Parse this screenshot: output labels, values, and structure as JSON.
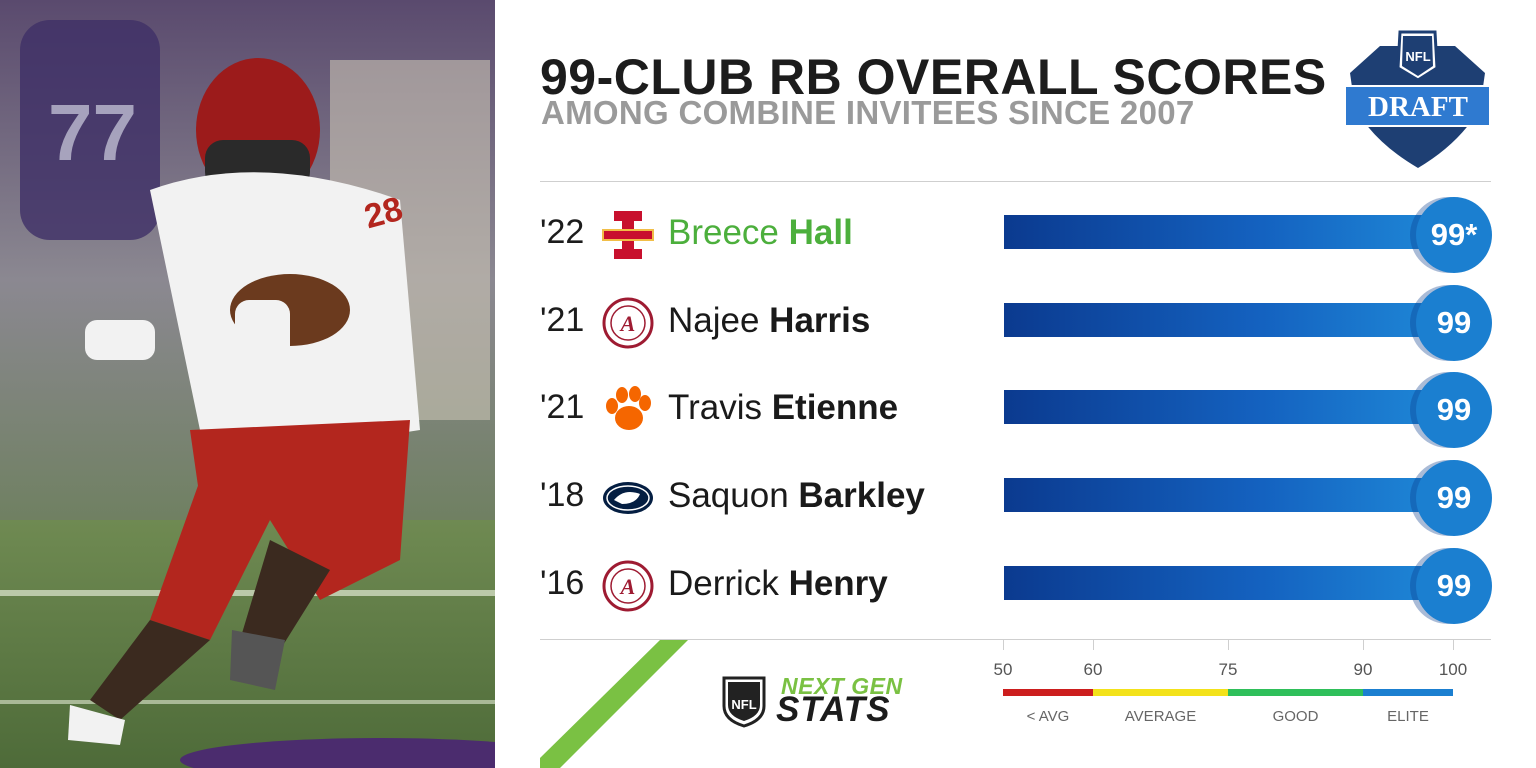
{
  "header": {
    "title": "99-CLUB RB OVERALL SCORES",
    "subtitle": "AMONG COMBINE INVITEES SINCE 2007",
    "draft_logo": {
      "top_text": "NFL",
      "main_text": "DRAFT"
    }
  },
  "photo": {
    "jersey_number": "28",
    "background_number": "77"
  },
  "colors": {
    "bar": "#1462c0",
    "badge": "#1b7fd0",
    "highlight_name": "#4caf3c",
    "scale_below_avg": "#cc1e1e",
    "scale_average": "#f3e21a",
    "scale_good": "#2fbf5a",
    "scale_elite": "#1b7fd0"
  },
  "chart_data": {
    "type": "bar",
    "orientation": "horizontal",
    "xlim": [
      50,
      100
    ],
    "categories": [
      "'22 Breece Hall",
      "'21 Najee Harris",
      "'21 Travis Etienne",
      "'18 Saquon Barkley",
      "'16 Derrick Henry"
    ],
    "values": [
      99,
      99,
      99,
      99,
      99
    ],
    "rows": [
      {
        "year": "'22",
        "first": "Breece",
        "last": "Hall",
        "school_icon": "iowa-state-logo-icon",
        "value": 99,
        "label": "99*",
        "highlight": true
      },
      {
        "year": "'21",
        "first": "Najee",
        "last": "Harris",
        "school_icon": "alabama-logo-icon",
        "value": 99,
        "label": "99",
        "highlight": false
      },
      {
        "year": "'21",
        "first": "Travis",
        "last": "Etienne",
        "school_icon": "clemson-paw-icon",
        "value": 99,
        "label": "99",
        "highlight": false
      },
      {
        "year": "'18",
        "first": "Saquon",
        "last": "Barkley",
        "school_icon": "penn-state-logo-icon",
        "value": 99,
        "label": "99",
        "highlight": false
      },
      {
        "year": "'16",
        "first": "Derrick",
        "last": "Henry",
        "school_icon": "alabama-logo-icon",
        "value": 99,
        "label": "99",
        "highlight": false
      }
    ],
    "scale": {
      "ticks": [
        50,
        60,
        75,
        90,
        100
      ],
      "tick_labels": [
        "50",
        "60",
        "75",
        "90",
        "100"
      ],
      "segments": [
        {
          "label": "< AVG",
          "from": 50,
          "to": 60,
          "color": "#cc1e1e"
        },
        {
          "label": "AVERAGE",
          "from": 60,
          "to": 75,
          "color": "#f3e21a"
        },
        {
          "label": "GOOD",
          "from": 75,
          "to": 90,
          "color": "#2fbf5a"
        },
        {
          "label": "ELITE",
          "from": 90,
          "to": 100,
          "color": "#1b7fd0"
        }
      ]
    }
  },
  "footer": {
    "brand_top": "NEXT GEN",
    "brand_bottom": "STATS",
    "shield_text": "NFL"
  }
}
